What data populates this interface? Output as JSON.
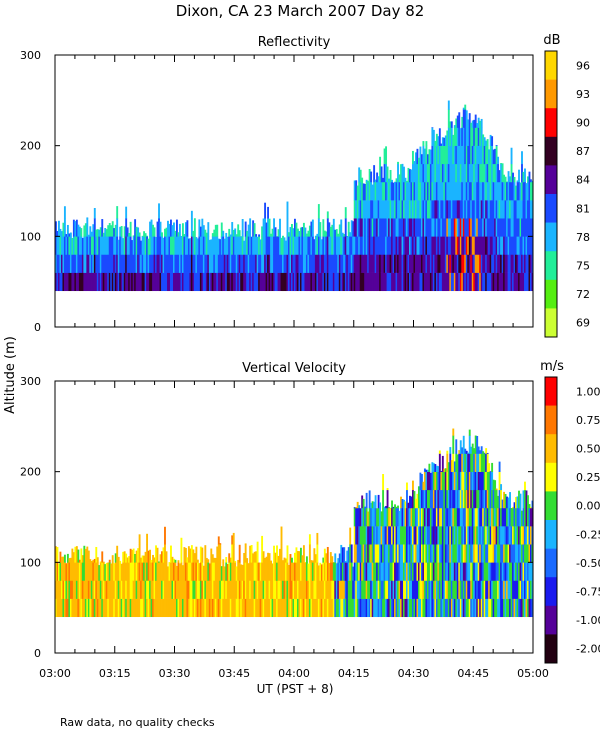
{
  "figure": {
    "title": "Dixon, CA 23 March 2007  Day  82",
    "ylabel": "Altitude (m)",
    "xlabel": "UT  (PST + 8)",
    "xticks": [
      "03:00",
      "03:15",
      "03:30",
      "03:45",
      "04:00",
      "04:15",
      "04:30",
      "04:45",
      "05:00"
    ],
    "footnote": "Raw data, no quality checks"
  },
  "chart_data": [
    {
      "type": "heatmap",
      "title": "Reflectivity",
      "xlabel": "UT  (PST + 8)",
      "ylabel": "Altitude (m)",
      "xlim": [
        "03:00",
        "05:00"
      ],
      "ylim": [
        0,
        300
      ],
      "yticks": [
        0,
        100,
        200,
        300
      ],
      "colorbar": {
        "unit": "dB",
        "labels": [
          "96",
          "93",
          "90",
          "87",
          "84",
          "81",
          "78",
          "75",
          "72",
          "69"
        ],
        "colors": [
          "#FFD700",
          "#FF9900",
          "#FF0000",
          "#330022",
          "#550099",
          "#1A4AFF",
          "#1AB4FF",
          "#22EE99",
          "#55EE11",
          "#CCFF33"
        ]
      },
      "data_bottom_m": 40,
      "echo_top_m": [
        {
          "time": "03:00",
          "top_m": 120
        },
        {
          "time": "04:15",
          "top_m": 120
        },
        {
          "time": "04:15",
          "top_m": 180
        },
        {
          "time": "04:28",
          "top_m": 180
        },
        {
          "time": "04:35",
          "top_m": 220
        },
        {
          "time": "04:42",
          "top_m": 240
        },
        {
          "time": "04:47",
          "top_m": 240
        },
        {
          "time": "04:53",
          "top_m": 180
        },
        {
          "time": "05:00",
          "top_m": 180
        }
      ],
      "summary_layers": [
        {
          "from_m": 40,
          "to_m": 80,
          "value_db": 84
        },
        {
          "from_m": 80,
          "to_m": 105,
          "value_db": 81
        },
        {
          "from_m": 105,
          "to_m": 140,
          "value_db": 77
        }
      ]
    },
    {
      "type": "heatmap",
      "title": "Vertical Velocity",
      "xlabel": "UT  (PST + 8)",
      "ylabel": "Altitude (m)",
      "xlim": [
        "03:00",
        "05:00"
      ],
      "ylim": [
        0,
        300
      ],
      "yticks": [
        0,
        100,
        200,
        300
      ],
      "colorbar": {
        "unit": "m/s",
        "labels": [
          "1.00",
          "0.75",
          "0.50",
          "0.25",
          "0.00",
          "-0.25",
          "-0.50",
          "-0.75",
          "-1.00",
          "-2.00"
        ],
        "colors": [
          "#FF0000",
          "#FF7700",
          "#FFBB00",
          "#FFFF00",
          "#33DD33",
          "#1AB4FF",
          "#1A6AFF",
          "#1A1AEE",
          "#550099",
          "#220011"
        ]
      },
      "data_bottom_m": 40,
      "echo_top_m": [
        {
          "time": "03:00",
          "top_m": 120
        },
        {
          "time": "04:15",
          "top_m": 120
        },
        {
          "time": "04:15",
          "top_m": 180
        },
        {
          "time": "04:28",
          "top_m": 180
        },
        {
          "time": "04:35",
          "top_m": 220
        },
        {
          "time": "04:42",
          "top_m": 240
        },
        {
          "time": "04:47",
          "top_m": 240
        },
        {
          "time": "04:53",
          "top_m": 180
        },
        {
          "time": "05:00",
          "top_m": 180
        }
      ],
      "summary_periods": [
        {
          "from": "03:00",
          "to": "04:10",
          "dominant_mps": 0.5
        },
        {
          "from": "04:10",
          "to": "05:00",
          "dominant_mps": -0.25
        }
      ]
    }
  ]
}
